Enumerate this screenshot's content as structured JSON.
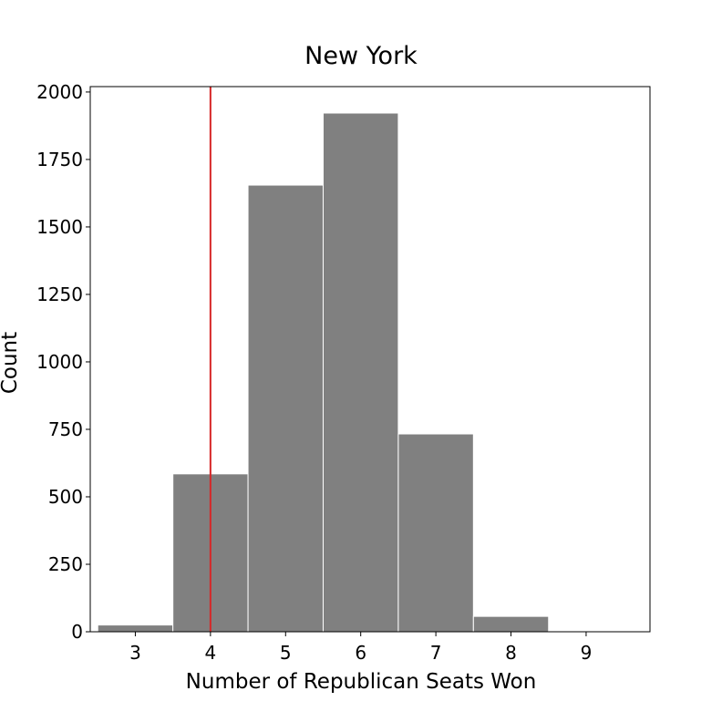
{
  "chart_data": {
    "type": "bar",
    "title": "New York",
    "xlabel": "Number of Republican Seats Won",
    "ylabel": "Count",
    "categories": [
      "3",
      "4",
      "5",
      "6",
      "7",
      "8",
      "9"
    ],
    "values": [
      25,
      585,
      1655,
      1922,
      733,
      57,
      1
    ],
    "ylim": [
      0,
      2020
    ],
    "xlim": [
      2.4,
      9.85
    ],
    "yticks": [
      0,
      250,
      500,
      750,
      1000,
      1250,
      1500,
      1750,
      2000
    ],
    "xticks": [
      3,
      4,
      5,
      6,
      7,
      8,
      9
    ],
    "reference_line_x": 4,
    "grid": false,
    "colors": {
      "bar": "#808080",
      "bar_edge": "#ffffff",
      "reference_line": "#d62728"
    }
  }
}
